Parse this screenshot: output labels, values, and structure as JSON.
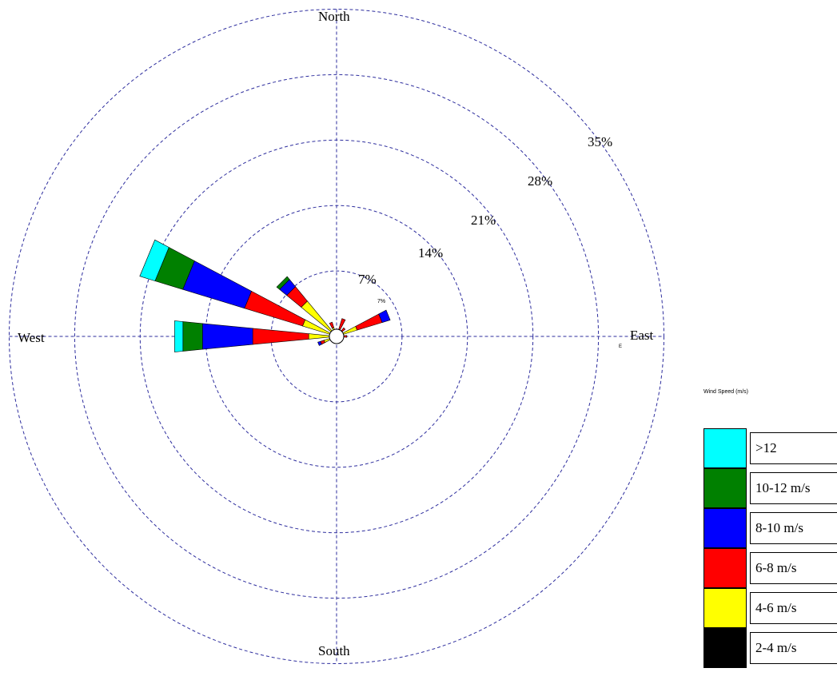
{
  "chart_data": {
    "type": "wind-rose",
    "title": "",
    "direction_labels": {
      "north": "North",
      "east": "East",
      "south": "South",
      "west": "West"
    },
    "small_labels": {
      "inner": "7%",
      "east_mark": "E"
    },
    "ring_labels": [
      "7%",
      "14%",
      "21%",
      "28%",
      "35%"
    ],
    "ring_values": [
      7,
      14,
      21,
      28,
      35
    ],
    "max_percent": 35,
    "legend_title": "Wind Speed (m/s)",
    "speed_bins": [
      {
        "label": "2-4 m/s",
        "color": "#000000"
      },
      {
        "label": "4-6 m/s",
        "color": "#ffff00"
      },
      {
        "label": "6-8 m/s",
        "color": "#ff0000"
      },
      {
        "label": "8-10 m/s",
        "color": "#0000ff"
      },
      {
        "label": "10-12 m/s",
        "color": "#008000"
      },
      {
        "label": ">12",
        "color": "#00ffff"
      }
    ],
    "sectors": [
      {
        "direction_deg": 0,
        "values": [
          0.3,
          0.3,
          0.0,
          0.0,
          0.0,
          0.0
        ]
      },
      {
        "direction_deg": 22.5,
        "values": [
          0.3,
          0.5,
          1.2,
          0.0,
          0.0,
          0.0
        ]
      },
      {
        "direction_deg": 45,
        "values": [
          0.3,
          0.5,
          0.4,
          0.0,
          0.0,
          0.0
        ]
      },
      {
        "direction_deg": 67.5,
        "values": [
          0.5,
          1.8,
          2.8,
          0.9,
          0.0,
          0.0
        ]
      },
      {
        "direction_deg": 90,
        "values": [
          0.3,
          0.5,
          0.3,
          0.0,
          0.0,
          0.0
        ]
      },
      {
        "direction_deg": 112.5,
        "values": [
          0.2,
          0.1,
          0.0,
          0.0,
          0.0,
          0.0
        ]
      },
      {
        "direction_deg": 135,
        "values": [
          0.2,
          0.0,
          0.0,
          0.0,
          0.0,
          0.0
        ]
      },
      {
        "direction_deg": 157.5,
        "values": [
          0.2,
          0.0,
          0.0,
          0.0,
          0.0,
          0.0
        ]
      },
      {
        "direction_deg": 180,
        "values": [
          0.2,
          0.0,
          0.0,
          0.0,
          0.0,
          0.0
        ]
      },
      {
        "direction_deg": 202.5,
        "values": [
          0.2,
          0.2,
          0.0,
          0.0,
          0.0,
          0.0
        ]
      },
      {
        "direction_deg": 225,
        "values": [
          0.3,
          0.3,
          0.0,
          0.0,
          0.0,
          0.0
        ]
      },
      {
        "direction_deg": 247.5,
        "values": [
          0.5,
          0.9,
          0.4,
          0.3,
          0.0,
          0.0
        ]
      },
      {
        "direction_deg": 270,
        "values": [
          0.5,
          2.5,
          6.0,
          5.4,
          2.1,
          0.9
        ]
      },
      {
        "direction_deg": 292.5,
        "values": [
          0.6,
          3.2,
          6.5,
          6.9,
          3.1,
          1.7
        ]
      },
      {
        "direction_deg": 315,
        "values": [
          0.4,
          4.5,
          2.0,
          1.0,
          0.4,
          0.0
        ]
      },
      {
        "direction_deg": 337.5,
        "values": [
          0.3,
          0.7,
          0.6,
          0.0,
          0.0,
          0.0
        ]
      }
    ]
  }
}
